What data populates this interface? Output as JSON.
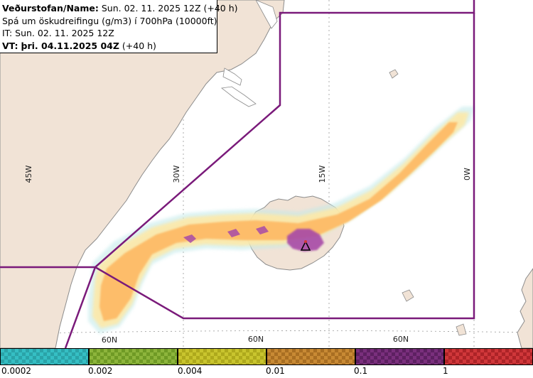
{
  "header": {
    "line1_label": "Veðurstofan/Name:",
    "line1_value": "Sun. 02. 11. 2025 12Z (+40 h)",
    "line2": "Spá um öskudreifingu (g/m3) í 700hPa (10000ft)",
    "line3": "IT: Sun. 02. 11. 2025 12Z",
    "line4_label": "VT:",
    "line4_value_bold": "þri. 04.11.2025 04Z",
    "line4_value": "(+40 h)"
  },
  "map": {
    "longitude_labels": [
      "45W",
      "30W",
      "15W",
      "0W"
    ],
    "latitude_labels": [
      "60N",
      "60N",
      "60N"
    ],
    "volcano_marker_icon": "volcano-triangle-icon",
    "colors": {
      "ocean": "#ffffff",
      "land": "#f1e3d6",
      "coast": "#9a9a9a",
      "fir_boundary": "#7a1a7a",
      "ash_low": "#fde9a8",
      "ash_mid": "#fdbd6a",
      "ash_high": "#a74aa7",
      "ash_traces": "#bfe9ea"
    }
  },
  "legend": {
    "ticks": [
      "0.0002",
      "0.002",
      "0.004",
      "0.01",
      "0.1",
      "1"
    ],
    "segments": [
      {
        "color": "#35bfc4",
        "alt": "#2aa3a8"
      },
      {
        "color": "#8db53c",
        "alt": "#6f9a25"
      },
      {
        "color": "#c9c52e",
        "alt": "#aea91c"
      },
      {
        "color": "#c88a34",
        "alt": "#a96e22"
      },
      {
        "color": "#7a2f7d",
        "alt": "#5d2061"
      },
      {
        "color": "#d0373a",
        "alt": "#ad2327"
      }
    ]
  }
}
